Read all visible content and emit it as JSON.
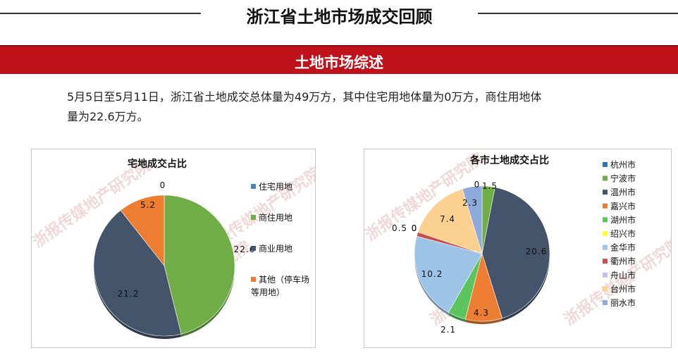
{
  "page_title": "浙江省土地市场成交回顾",
  "banner_title": "土地市场综述",
  "summary": {
    "line1": "5月5日至5月11日，浙江省土地成交总体量为49万方，其中住宅用地体量为0万方，商住用地体",
    "line2": "量为22.6万方。"
  },
  "watermark": "浙报传媒地产研究院",
  "chart_data": [
    {
      "type": "pie",
      "title": "宅地成交占比",
      "categories": [
        "住宅用地",
        "商住用地",
        "商业用地",
        "其他（停车场等用地）"
      ],
      "values": [
        0,
        22.6,
        21.2,
        5.2
      ],
      "labels": [
        "0",
        "22.6",
        "21.2",
        "5.2"
      ],
      "legend_lines": [
        [
          "住宅用地"
        ],
        [
          "商住用地"
        ],
        [
          "商业用地"
        ],
        [
          "其他（停车场",
          "等用地）"
        ]
      ],
      "colors": [
        "#4f81bd",
        "#70ad47",
        "#44546a",
        "#ed7d31"
      ],
      "legend": "right"
    },
    {
      "type": "pie",
      "title": "各市土地成交占比",
      "categories": [
        "杭州市",
        "宁波市",
        "温州市",
        "嘉兴市",
        "湖州市",
        "绍兴市",
        "金华市",
        "衢州市",
        "舟山市",
        "台州市",
        "丽水市"
      ],
      "values": [
        0,
        1.5,
        20.6,
        4.3,
        2.1,
        0,
        10.2,
        0.5,
        0,
        7.4,
        2.3
      ],
      "labels": [
        "0",
        "1.5",
        "20.6",
        "4.3",
        "2.1",
        "0",
        "10.2",
        "0.5",
        "0",
        "7.4",
        "2.3"
      ],
      "colors": [
        "#2e75b6",
        "#70ad47",
        "#44546a",
        "#ed7d31",
        "#5cc45c",
        "#ffff33",
        "#9dc3e6",
        "#c5504b",
        "#c8bfe7",
        "#fcd08f",
        "#8ea9db"
      ],
      "legend": "right"
    }
  ]
}
